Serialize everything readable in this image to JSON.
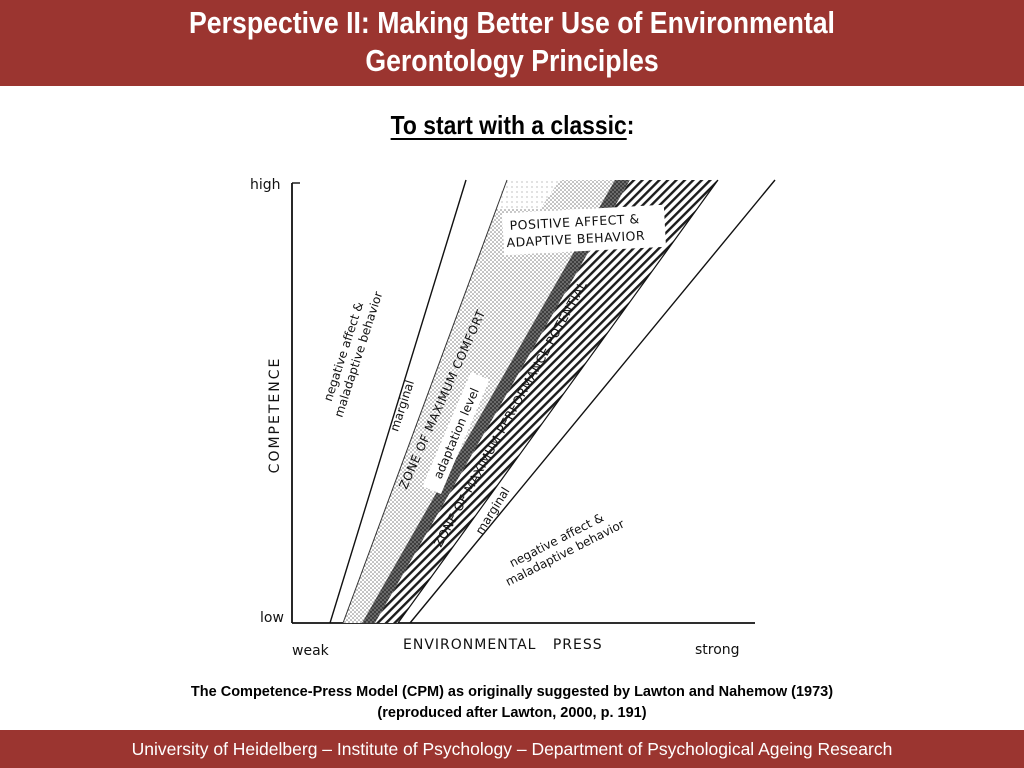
{
  "header": {
    "title_line1": "Perspective II: Making Better Use of Environmental",
    "title_line2": "Gerontology Principles"
  },
  "subtitle": {
    "underlined": "To start with a classic",
    "suffix": ":"
  },
  "figure": {
    "y_high": "high",
    "y_low": "low",
    "y_axis_label": "COMPETENCE",
    "x_weak": "weak",
    "x_axis_label": "ENVIRONMENTAL   PRESS",
    "x_strong": "strong",
    "positive_line1": "POSITIVE AFFECT &",
    "positive_line2": "ADAPTIVE BEHAVIOR",
    "neg_upper_line1": "negative affect &",
    "neg_upper_line2": "maladaptive behavior",
    "marginal_upper": "marginal",
    "zone_comfort": "ZONE OF MAXIMUM COMFORT",
    "adaptation_level": "adaptation level",
    "zone_performance": "ZONE OF MAXIMUM PERFORMANCE POTENTIAL",
    "marginal_lower": "marginal",
    "neg_lower_line1": "negative affect &",
    "neg_lower_line2": "maladaptive behavior"
  },
  "caption": {
    "line1": "The Competence-Press Model (CPM) as originally suggested by Lawton and Nahemow (1973)",
    "line2": "(reproduced after Lawton, 2000, p. 191)"
  },
  "footer": {
    "text": "University of Heidelberg – Institute of Psychology – Department of Psychological Ageing Research"
  }
}
